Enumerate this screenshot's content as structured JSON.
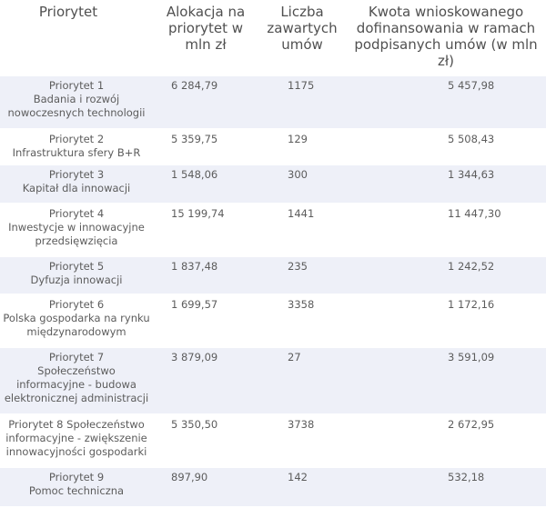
{
  "table": {
    "headers": {
      "priority": "Priorytet",
      "allocation": "Alokacja na priorytet w mln zł",
      "contracts": "Liczba zawartych umów",
      "amount": "Kwota wnioskowanego dofinansowania w ramach podpisanych umów (w mln zł)"
    },
    "rows": [
      {
        "name": "Priorytet 1\nBadania i rozwój nowoczesnych  technologii",
        "allocation": "6 284,79",
        "contracts": "1175",
        "amount": "5 457,98"
      },
      {
        "name": "Priorytet 2\nInfrastruktura sfery B+R",
        "allocation": "5 359,75",
        "contracts": "129",
        "amount": "5 508,43"
      },
      {
        "name": "Priorytet 3\nKapitał dla innowacji",
        "allocation": "1 548,06",
        "contracts": "300",
        "amount": "1 344,63"
      },
      {
        "name": "Priorytet 4\nInwestycje w innowacyjne przedsięwzięcia",
        "allocation": "15 199,74",
        "contracts": "1441",
        "amount": "11 447,30"
      },
      {
        "name": "Priorytet 5\nDyfuzja innowacji",
        "allocation": "1 837,48",
        "contracts": "235",
        "amount": "1 242,52"
      },
      {
        "name": "Priorytet 6\nPolska gospodarka na rynku międzynarodowym",
        "allocation": "1 699,57",
        "contracts": "3358",
        "amount": "1 172,16"
      },
      {
        "name": "Priorytet 7\nSpołeczeństwo informacyjne - budowa elektronicznej administracji",
        "allocation": "3 879,09",
        "contracts": "27",
        "amount": "3 591,09"
      },
      {
        "name": "Priorytet 8 Społeczeństwo informacyjne - zwiększenie innowacyjności gospodarki",
        "allocation": "5 350,50",
        "contracts": "3738",
        "amount": "2 672,95"
      },
      {
        "name": "Priorytet 9\nPomoc techniczna",
        "allocation": "897,90",
        "contracts": "142",
        "amount": "532,18"
      }
    ]
  }
}
